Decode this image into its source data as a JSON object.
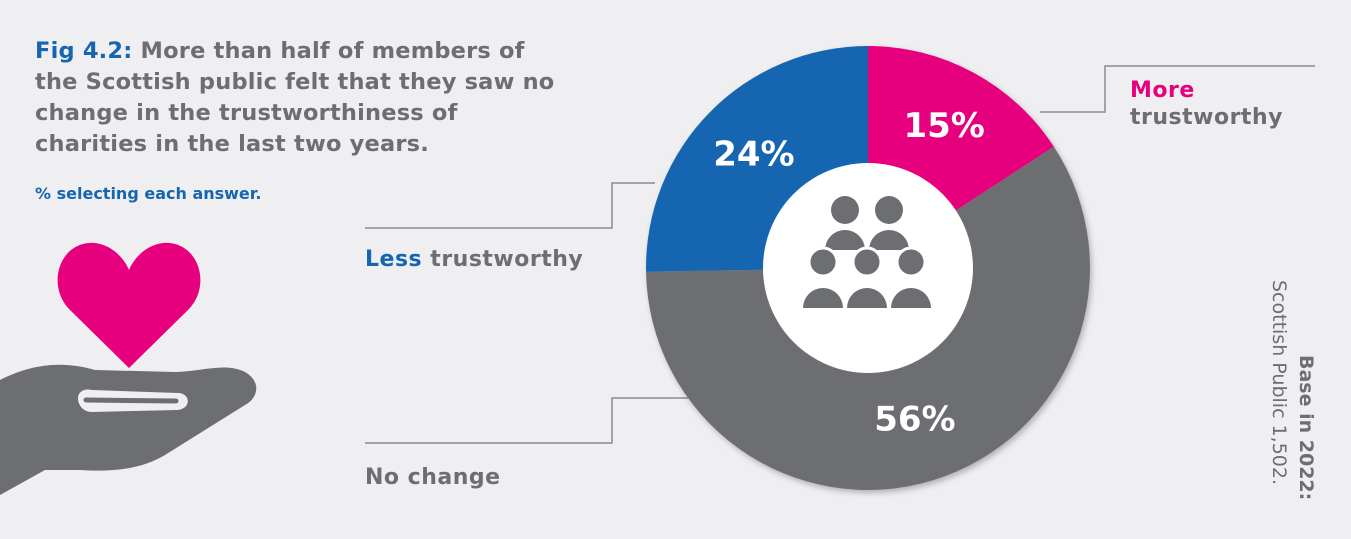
{
  "chart_data": {
    "type": "donut",
    "title_label": "Fig 4.2:",
    "title": "More than half of members of the Scottish public felt that they saw no change in the trustworthiness of charities in the last two years.",
    "subtitle": "% selecting each answer.",
    "categories": [
      "More trustworthy",
      "No change",
      "Less trustworthy"
    ],
    "values": [
      15,
      56,
      24
    ],
    "value_labels": [
      "15%",
      "56%",
      "24%"
    ],
    "colors": [
      "#e6007e",
      "#6d6e71",
      "#1565b0"
    ],
    "highlight_first_word": [
      true,
      false,
      true
    ],
    "note_title": "Base in 2022:",
    "note": "Scottish Public 1,502."
  }
}
